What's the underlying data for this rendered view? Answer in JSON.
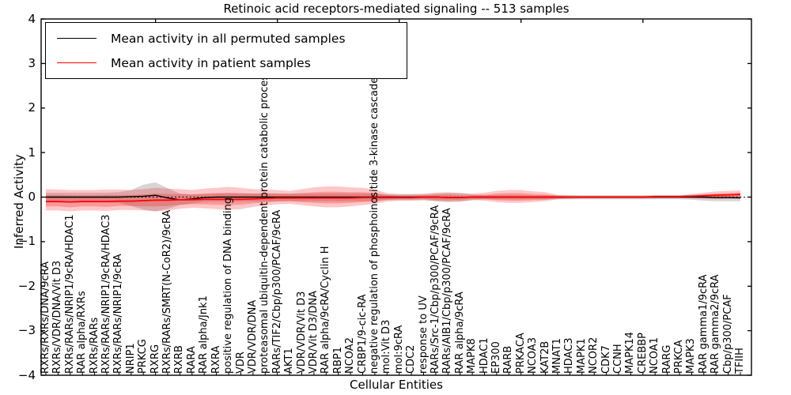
{
  "chart_data": {
    "type": "line",
    "title": "Retinoic acid receptors-mediated signaling -- 513 samples",
    "xlabel": "Cellular Entities",
    "ylabel": "Inferred Activity",
    "ylim": [
      -4,
      4
    ],
    "yticks": [
      4,
      3,
      2,
      1,
      0,
      -1,
      -2,
      -3,
      -4
    ],
    "grid": false,
    "legend_position": "upper left",
    "zero_reference_line": {
      "value": 0,
      "style": "dotted",
      "color": "#000000"
    },
    "x_major_tick_indices": [
      9,
      19,
      29,
      39,
      49
    ],
    "categories": [
      "RXRs/RXRs/DNA/9cRA",
      "RXRs/VDR/DNA/Vit D3",
      "RXRs/RARs/NRIP1/9cRA/HDAC1",
      "RAR alpha/RXRs",
      "RXRs/RARs",
      "RXRs/RARs/NRIP1/9cRA/HDAC3",
      "RXRs/RARs/NRIP1/9cRA",
      "NRIP1",
      "PRKCG",
      "RXRG",
      "RXRs/RARs/SMRT(N-CoR2)/9cRA",
      "RXRB",
      "RARA",
      "RAR alpha/Jnk1",
      "RXRA",
      "positive regulation of DNA binding",
      "VDR",
      "VDR/VDR/DNA",
      "proteasomal ubiquitin-dependent protein catabolic process",
      "RARs/TIF2/Cbp/p300/PCAF/9cRA",
      "AKT1",
      "VDR/VDR/Vit D3",
      "VDR/Vit D3/DNA",
      "RAR alpha/9cRA/Cyclin H",
      "RBP1",
      "NCOA2",
      "CRBP1/9-cic-RA",
      "negative regulation of phosphoinositide 3-kinase cascade",
      "mol:Vit D3",
      "mol:9cRA",
      "CDC2",
      "response to UV",
      "RARs/Src-1/Cbp/p300/PCAF/9cRA",
      "RARs/AIB1/Cbp/p300/PCAF/9cRA",
      "RAR alpha/9cRA",
      "MAPK8",
      "HDAC1",
      "EP300",
      "RARB",
      "PRKACA",
      "NCOA3",
      "KAT2B",
      "MNAT1",
      "HDAC3",
      "MAPK1",
      "NCOR2",
      "CDK7",
      "CCNH",
      "MAPK14",
      "CREBBP",
      "NCOA1",
      "RARG",
      "PRKCA",
      "MAPK3",
      "RAR gamma1/9cRA",
      "RAR gamma2/9cRA",
      "Cbp/p300/PCAF",
      "TFIIH"
    ],
    "series": [
      {
        "name": "Mean activity in all permuted samples",
        "color": "#000000",
        "values": [
          0,
          0,
          0,
          0,
          0,
          0,
          0,
          0.01,
          0.02,
          0.04,
          -0.02,
          -0.06,
          -0.04,
          -0.01,
          0,
          0,
          0,
          0,
          0,
          0,
          0,
          0,
          0,
          0,
          0,
          0,
          0,
          0,
          0,
          0,
          0,
          0,
          0,
          -0.01,
          -0.01,
          0,
          0,
          0,
          0,
          0,
          0,
          0,
          0,
          0,
          0,
          0,
          0,
          0,
          0,
          0,
          0,
          0,
          0,
          0,
          0,
          -0.01,
          -0.01,
          -0.02
        ]
      },
      {
        "name": "Mean activity in patient samples",
        "color": "#ff0000",
        "values": [
          -0.1,
          -0.1,
          -0.11,
          -0.1,
          -0.1,
          -0.1,
          -0.09,
          -0.09,
          -0.08,
          -0.07,
          -0.07,
          -0.06,
          -0.06,
          -0.05,
          -0.05,
          -0.05,
          -0.05,
          -0.04,
          -0.03,
          -0.02,
          -0.02,
          -0.02,
          -0.02,
          -0.02,
          -0.02,
          -0.02,
          -0.01,
          -0.01,
          -0.01,
          -0.01,
          -0.01,
          0,
          0,
          -0.01,
          -0.01,
          0,
          0,
          0,
          0,
          0,
          0,
          0,
          0,
          0,
          0,
          0,
          0,
          0,
          0,
          0,
          0.01,
          0.01,
          0.01,
          0.02,
          0.03,
          0.04,
          0.05,
          0.06
        ]
      }
    ],
    "bands": [
      {
        "name": "permuted-samples-range",
        "color": "#808080",
        "opacity": 0.32,
        "upper": [
          0.1,
          0.1,
          0.1,
          0.1,
          0.1,
          0.1,
          0.11,
          0.16,
          0.28,
          0.33,
          0.2,
          0.08,
          0.06,
          0.07,
          0.08,
          0.08,
          0.08,
          0.08,
          0.09,
          0.08,
          0.08,
          0.08,
          0.08,
          0.08,
          0.08,
          0.08,
          0.08,
          0.08,
          0.06,
          0.06,
          0.06,
          0.06,
          0.08,
          0.09,
          0.09,
          0.06,
          0.05,
          0.05,
          0.05,
          0.05,
          0.04,
          0.04,
          0.04,
          0.04,
          0.04,
          0.04,
          0.04,
          0.04,
          0.04,
          0.04,
          0.04,
          0.04,
          0.04,
          0.05,
          0.06,
          0.07,
          0.07,
          0.07
        ],
        "lower": [
          -0.12,
          -0.12,
          -0.12,
          -0.12,
          -0.12,
          -0.12,
          -0.13,
          -0.2,
          -0.28,
          -0.32,
          -0.26,
          -0.18,
          -0.14,
          -0.1,
          -0.1,
          -0.1,
          -0.1,
          -0.1,
          -0.1,
          -0.09,
          -0.09,
          -0.09,
          -0.09,
          -0.09,
          -0.09,
          -0.09,
          -0.09,
          -0.09,
          -0.07,
          -0.07,
          -0.07,
          -0.07,
          -0.09,
          -0.1,
          -0.1,
          -0.07,
          -0.05,
          -0.05,
          -0.05,
          -0.05,
          -0.05,
          -0.05,
          -0.05,
          -0.05,
          -0.05,
          -0.05,
          -0.05,
          -0.05,
          -0.05,
          -0.05,
          -0.05,
          -0.05,
          -0.05,
          -0.06,
          -0.08,
          -0.09,
          -0.09,
          -0.09
        ]
      },
      {
        "name": "patient-samples-outer-range",
        "color": "#ff0000",
        "opacity": 0.22,
        "upper": [
          0.18,
          0.17,
          0.16,
          0.16,
          0.16,
          0.17,
          0.17,
          0.16,
          0.18,
          0.21,
          0.19,
          0.18,
          0.16,
          0.19,
          0.21,
          0.23,
          0.21,
          0.18,
          0.17,
          0.16,
          0.14,
          0.18,
          0.22,
          0.24,
          0.24,
          0.22,
          0.21,
          0.17,
          0.09,
          0.07,
          0.07,
          0.08,
          0.1,
          0.11,
          0.09,
          0.08,
          0.1,
          0.14,
          0.16,
          0.16,
          0.13,
          0.11,
          0.05,
          0.04,
          0.03,
          0.03,
          0.03,
          0.03,
          0.03,
          0.03,
          0.04,
          0.04,
          0.04,
          0.07,
          0.1,
          0.13,
          0.14,
          0.15
        ],
        "lower": [
          -0.3,
          -0.3,
          -0.32,
          -0.3,
          -0.3,
          -0.31,
          -0.29,
          -0.29,
          -0.3,
          -0.32,
          -0.3,
          -0.26,
          -0.24,
          -0.25,
          -0.27,
          -0.29,
          -0.27,
          -0.22,
          -0.19,
          -0.16,
          -0.15,
          -0.18,
          -0.21,
          -0.23,
          -0.23,
          -0.21,
          -0.18,
          -0.15,
          -0.1,
          -0.08,
          -0.08,
          -0.07,
          -0.09,
          -0.11,
          -0.1,
          -0.07,
          -0.08,
          -0.11,
          -0.13,
          -0.13,
          -0.11,
          -0.09,
          -0.05,
          -0.04,
          -0.03,
          -0.03,
          -0.03,
          -0.03,
          -0.03,
          -0.03,
          -0.02,
          -0.02,
          -0.02,
          -0.03,
          -0.04,
          -0.05,
          -0.04,
          -0.03
        ]
      },
      {
        "name": "patient-samples-inner-range",
        "color": "#ee2222",
        "opacity": 0.28,
        "upper": [
          0.05,
          0.05,
          0.04,
          0.04,
          0.04,
          0.05,
          0.05,
          0.05,
          0.06,
          0.08,
          0.07,
          0.07,
          0.06,
          0.08,
          0.09,
          0.1,
          0.09,
          0.08,
          0.08,
          0.08,
          0.07,
          0.09,
          0.11,
          0.12,
          0.12,
          0.11,
          0.11,
          0.09,
          0.05,
          0.03,
          0.03,
          0.04,
          0.05,
          0.06,
          0.04,
          0.04,
          0.05,
          0.08,
          0.09,
          0.09,
          0.07,
          0.06,
          0.03,
          0.02,
          0.02,
          0.02,
          0.02,
          0.02,
          0.02,
          0.02,
          0.03,
          0.03,
          0.03,
          0.04,
          0.06,
          0.08,
          0.09,
          0.1
        ],
        "lower": [
          -0.21,
          -0.21,
          -0.23,
          -0.21,
          -0.21,
          -0.22,
          -0.2,
          -0.2,
          -0.21,
          -0.21,
          -0.2,
          -0.17,
          -0.16,
          -0.16,
          -0.17,
          -0.18,
          -0.17,
          -0.14,
          -0.12,
          -0.1,
          -0.09,
          -0.11,
          -0.13,
          -0.14,
          -0.14,
          -0.13,
          -0.11,
          -0.09,
          -0.06,
          -0.05,
          -0.05,
          -0.04,
          -0.06,
          -0.07,
          -0.06,
          -0.04,
          -0.05,
          -0.07,
          -0.08,
          -0.08,
          -0.07,
          -0.06,
          -0.03,
          -0.02,
          -0.02,
          -0.02,
          -0.02,
          -0.02,
          -0.02,
          -0.02,
          -0.01,
          -0.01,
          -0.01,
          -0.01,
          -0.02,
          -0.02,
          -0.02,
          -0.01
        ]
      }
    ]
  }
}
